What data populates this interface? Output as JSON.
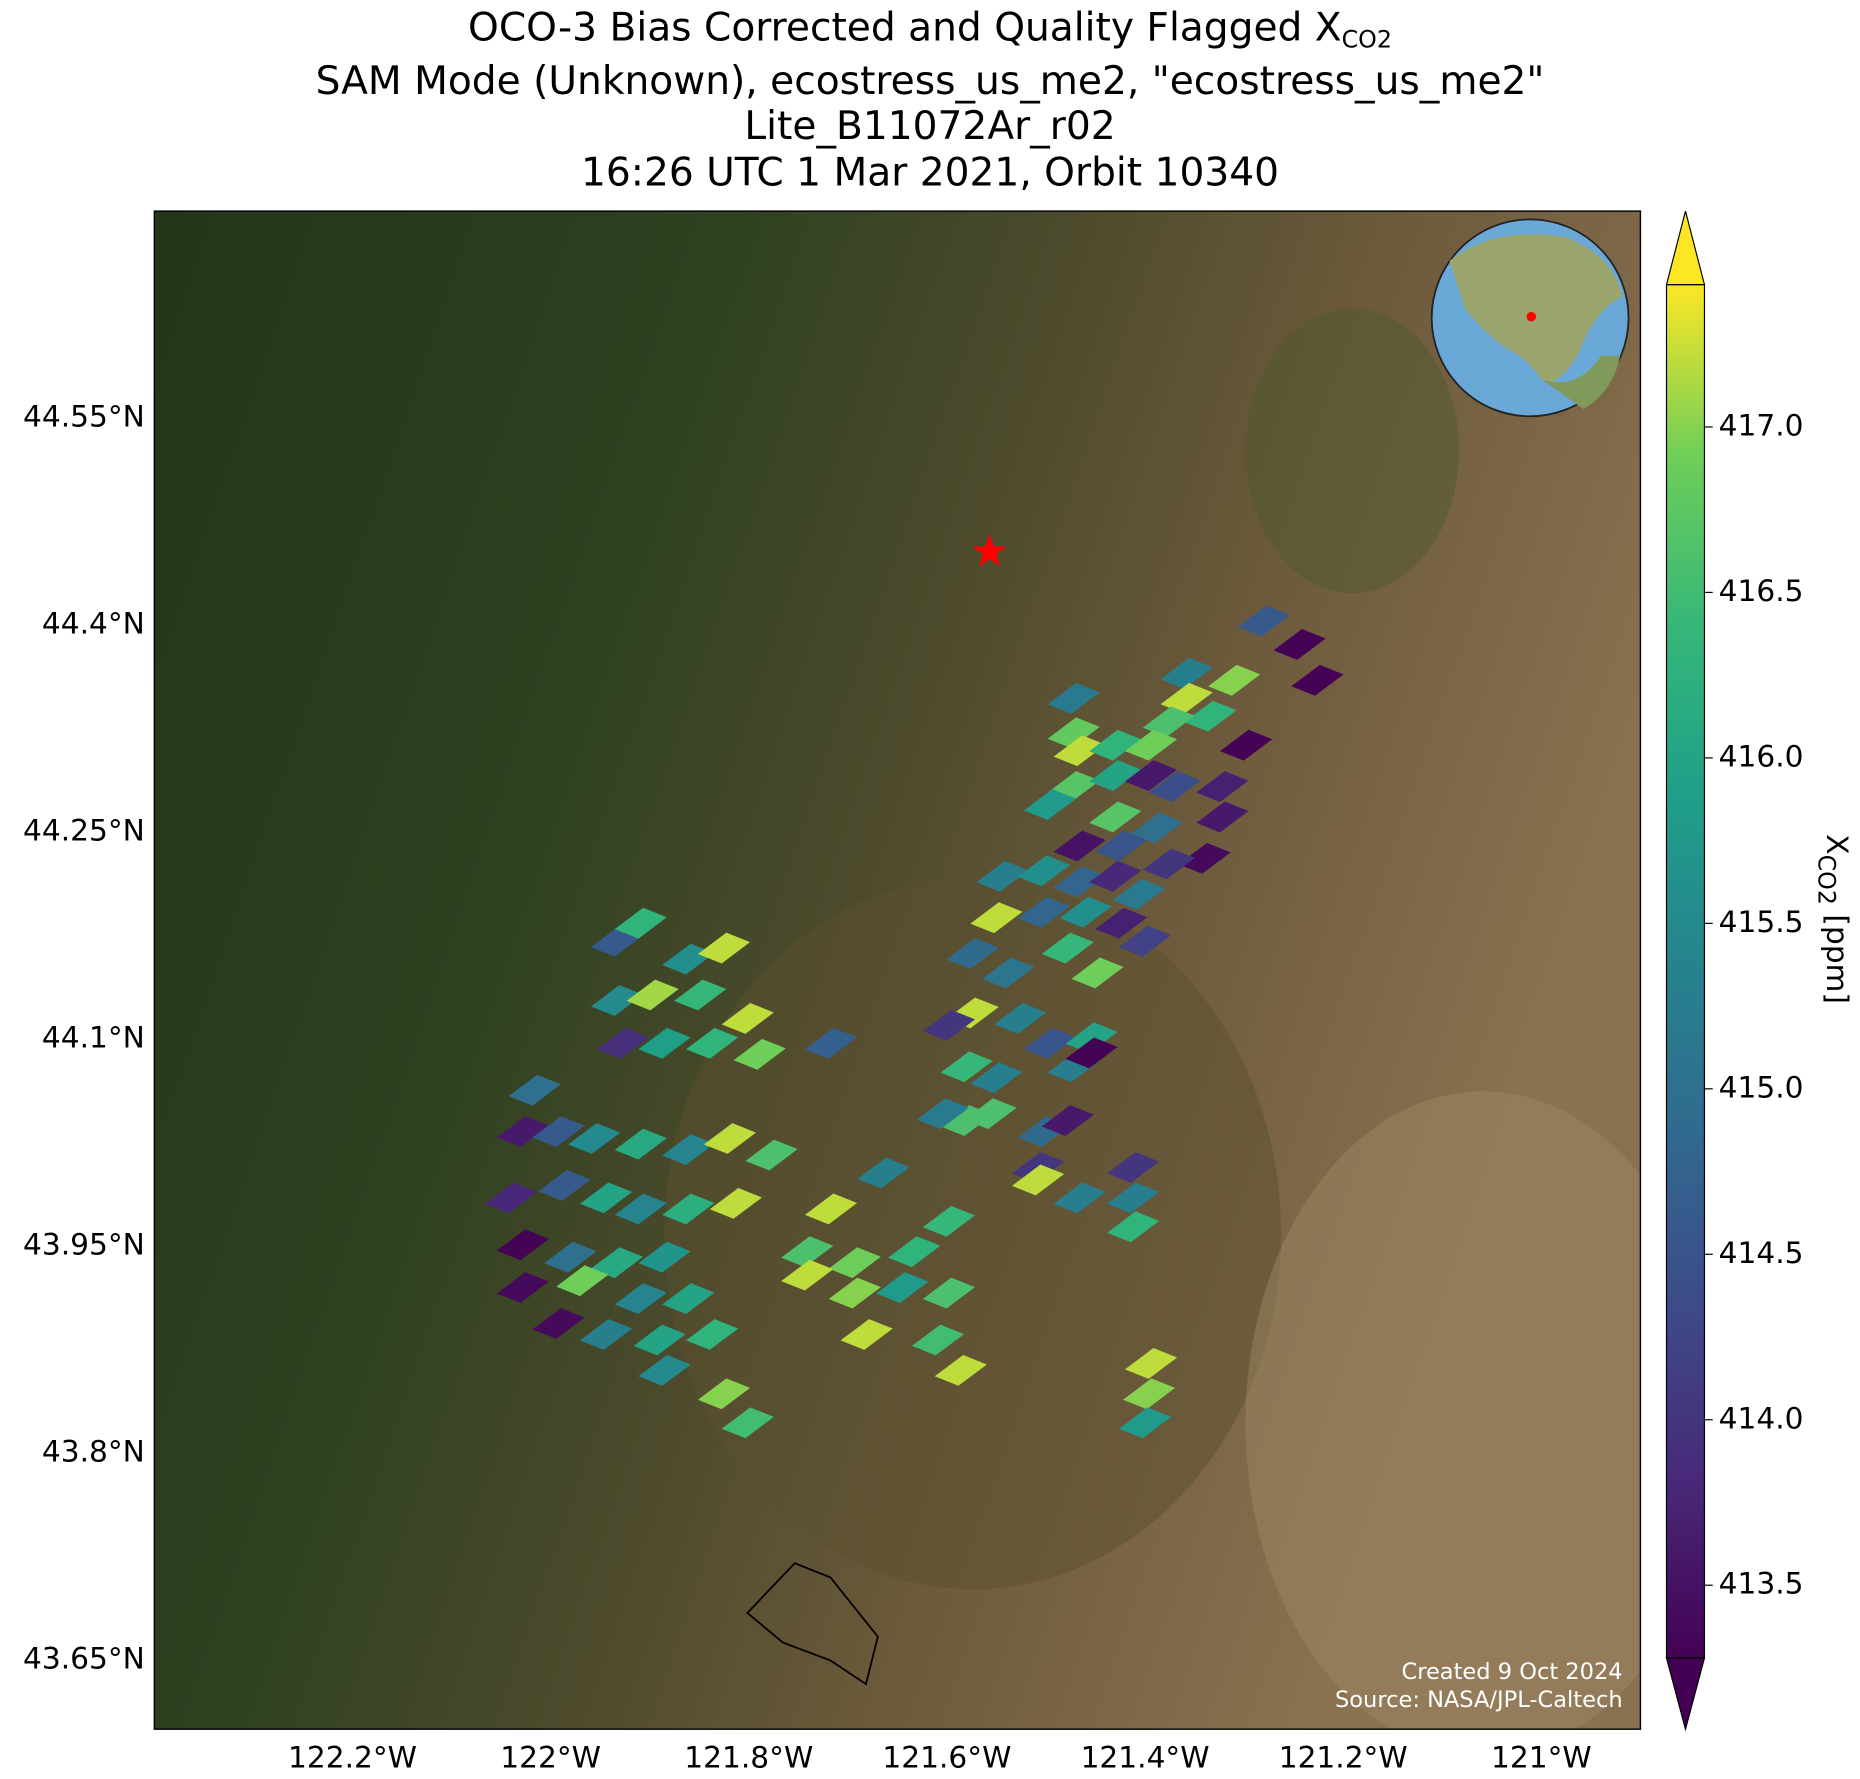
{
  "header": {
    "title_lines": [
      {
        "text": "OCO-3 Bias Corrected and Quality Flagged X",
        "subscript": "CO2"
      },
      {
        "text": "SAM Mode (Unknown), ecostress_us_me2, \"ecostress_us_me2\""
      },
      {
        "text": "Lite_B11072Ar_r02"
      },
      {
        "text": "16:26 UTC 1 Mar 2021, Orbit 10340"
      }
    ]
  },
  "map": {
    "xlim": [
      -122.4,
      -120.9
    ],
    "ylim": [
      43.6,
      44.7
    ],
    "xticks": [
      {
        "value": -122.2,
        "label": "122.2°W"
      },
      {
        "value": -122,
        "label": "122°W"
      },
      {
        "value": -121.8,
        "label": "121.8°W"
      },
      {
        "value": -121.6,
        "label": "121.6°W"
      },
      {
        "value": -121.4,
        "label": "121.4°W"
      },
      {
        "value": -121.2,
        "label": "121.2°W"
      },
      {
        "value": -121,
        "label": "121°W"
      }
    ],
    "yticks": [
      {
        "value": 44.55,
        "label": "44.55°N"
      },
      {
        "value": 44.4,
        "label": "44.4°N"
      },
      {
        "value": 44.25,
        "label": "44.25°N"
      },
      {
        "value": 44.1,
        "label": "44.1°N"
      },
      {
        "value": 43.95,
        "label": "43.95°N"
      },
      {
        "value": 43.8,
        "label": "43.8°N"
      },
      {
        "value": 43.65,
        "label": "43.65°N"
      }
    ],
    "grid": true,
    "site": {
      "lon": -121.557,
      "lat": 44.453,
      "color": "#ff0000"
    },
    "footprints": {
      "lon": [
        -121.244,
        -121.226,
        -121.298,
        -121.28,
        -121.31,
        -121.358,
        -121.358,
        -121.334,
        -121.376,
        -121.322,
        -121.322,
        -121.34,
        -121.472,
        -121.472,
        -121.466,
        -121.43,
        -121.394,
        -121.472,
        -121.43,
        -121.394,
        -121.37,
        -121.496,
        -121.43,
        -121.388,
        -121.466,
        -121.424,
        -121.376,
        -121.544,
        -121.502,
        -121.466,
        -121.43,
        -121.406,
        -121.55,
        -121.502,
        -121.46,
        -121.424,
        -121.4,
        -121.478,
        -121.448,
        -121.574,
        -121.538,
        -121.574,
        -121.598,
        -121.526,
        -121.496,
        -121.472,
        -121.454,
        -121.454,
        -121.58,
        -121.55,
        -121.58,
        -121.604,
        -121.556,
        -121.502,
        -121.478,
        -121.508,
        -121.508,
        -121.466,
        -121.412,
        -121.412,
        -121.412,
        -121.394,
        -121.396,
        -121.4,
        -121.933,
        -121.909,
        -121.861,
        -121.825,
        -121.933,
        -121.897,
        -121.849,
        -121.801,
        -121.927,
        -121.885,
        -121.837,
        -121.789,
        -121.717,
        -122.016,
        -122.028,
        -121.992,
        -121.956,
        -121.909,
        -121.861,
        -121.819,
        -121.777,
        -121.664,
        -122.04,
        -121.986,
        -121.944,
        -121.909,
        -121.861,
        -121.813,
        -121.717,
        -121.598,
        -122.028,
        -121.98,
        -121.933,
        -121.885,
        -121.741,
        -121.693,
        -121.633,
        -122.028,
        -121.968,
        -121.909,
        -121.861,
        -121.741,
        -121.693,
        -121.645,
        -121.598,
        -121.992,
        -121.944,
        -121.89,
        -121.837,
        -121.681,
        -121.609,
        -121.885,
        -121.825,
        -121.801,
        -121.586
      ],
      "lat": [
        44.386,
        44.36,
        44.313,
        44.403,
        44.36,
        44.365,
        44.347,
        44.334,
        44.33,
        44.283,
        44.261,
        44.231,
        44.347,
        44.322,
        44.309,
        44.313,
        44.313,
        44.283,
        44.291,
        44.291,
        44.283,
        44.27,
        44.261,
        44.253,
        44.24,
        44.24,
        44.227,
        44.218,
        44.222,
        44.214,
        44.218,
        44.205,
        44.188,
        44.192,
        44.192,
        44.184,
        44.171,
        44.166,
        44.148,
        44.162,
        44.148,
        44.119,
        44.11,
        44.115,
        44.097,
        44.08,
        44.101,
        44.09,
        44.08,
        44.072,
        44.041,
        44.046,
        44.046,
        44.033,
        44.041,
        44.007,
        43.998,
        43.985,
        44.007,
        43.985,
        43.964,
        43.865,
        43.843,
        43.822,
        44.171,
        44.184,
        44.158,
        44.166,
        44.128,
        44.132,
        44.132,
        44.115,
        44.097,
        44.097,
        44.097,
        44.089,
        44.097,
        44.063,
        44.033,
        44.033,
        44.028,
        44.024,
        44.02,
        44.028,
        44.016,
        44.003,
        43.985,
        43.994,
        43.985,
        43.977,
        43.977,
        43.981,
        43.977,
        43.968,
        43.951,
        43.942,
        43.938,
        43.942,
        43.946,
        43.938,
        43.946,
        43.92,
        43.925,
        43.912,
        43.912,
        43.929,
        43.916,
        43.92,
        43.916,
        43.894,
        43.886,
        43.882,
        43.886,
        43.886,
        43.882,
        43.86,
        43.843,
        43.822,
        43.86
      ],
      "values": [
        413.3,
        413.3,
        413.3,
        414.6,
        417.0,
        415.3,
        417.2,
        416.3,
        416.6,
        413.7,
        413.6,
        413.4,
        415.2,
        416.8,
        417.2,
        416.3,
        416.9,
        416.7,
        416.0,
        413.6,
        414.4,
        415.8,
        416.7,
        415.0,
        413.5,
        414.5,
        414.0,
        415.3,
        415.6,
        414.8,
        413.8,
        415.2,
        417.2,
        414.8,
        415.6,
        413.7,
        414.2,
        416.4,
        416.9,
        414.9,
        415.1,
        417.2,
        414.0,
        415.3,
        414.5,
        415.3,
        416.0,
        413.3,
        416.4,
        415.3,
        416.6,
        415.2,
        416.6,
        414.9,
        413.6,
        414.0,
        417.2,
        415.3,
        414.0,
        415.3,
        416.3,
        417.2,
        417.0,
        415.8,
        414.6,
        416.3,
        415.6,
        417.2,
        415.5,
        417.1,
        416.4,
        417.2,
        413.9,
        415.9,
        416.3,
        416.9,
        414.7,
        415.0,
        413.6,
        414.6,
        415.5,
        416.1,
        415.4,
        417.2,
        416.6,
        415.3,
        413.8,
        414.6,
        416.0,
        415.4,
        416.2,
        417.2,
        417.2,
        416.4,
        413.3,
        415.0,
        416.1,
        415.7,
        416.6,
        416.9,
        416.3,
        413.4,
        416.9,
        415.4,
        416.0,
        417.2,
        417.0,
        415.8,
        416.6,
        413.4,
        415.3,
        416.0,
        416.3,
        417.2,
        416.5,
        415.5,
        417.0,
        416.5,
        417.2
      ]
    },
    "footer": [
      "Created 9 Oct 2024",
      "Source: NASA/JPL-Caltech"
    ]
  },
  "colorbar": {
    "clim": [
      413.28,
      417.43
    ],
    "extend": "both",
    "colormap": [
      "#440154",
      "#482878",
      "#3e4989",
      "#31688e",
      "#26828e",
      "#1f9e89",
      "#35b779",
      "#6ece58",
      "#fde725"
    ],
    "ticks": [
      {
        "value": 413.5,
        "label": "413.5"
      },
      {
        "value": 414,
        "label": "414.0"
      },
      {
        "value": 414.5,
        "label": "414.5"
      },
      {
        "value": 415,
        "label": "415.0"
      },
      {
        "value": 415.5,
        "label": "415.5"
      },
      {
        "value": 416,
        "label": "416.0"
      },
      {
        "value": 416.5,
        "label": "416.5"
      },
      {
        "value": 417,
        "label": "417.0"
      }
    ],
    "label": {
      "text": "X",
      "subscript": "CO2",
      "unit": "[ppm]"
    }
  }
}
